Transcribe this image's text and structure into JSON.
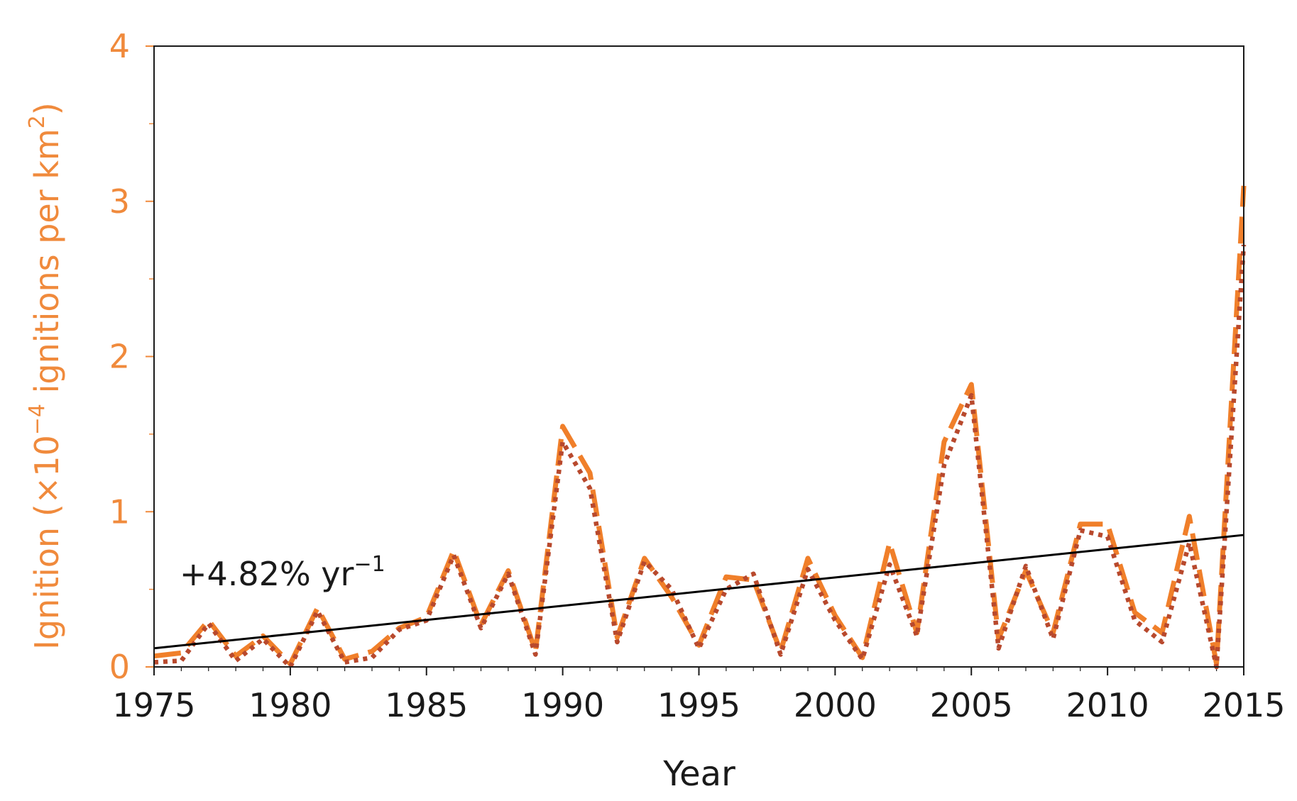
{
  "chart_data": {
    "type": "line",
    "title": "",
    "xlabel": "Year",
    "ylabel_parts": {
      "prefix": "Ignition (×10",
      "exp1": "−4",
      "middle": " ignitions per km",
      "exp2": "2",
      "suffix": ")"
    },
    "xlim": [
      1975,
      2015
    ],
    "ylim": [
      0,
      4
    ],
    "xticks": [
      1975,
      1980,
      1985,
      1990,
      1995,
      2000,
      2005,
      2010,
      2015
    ],
    "yticks": [
      0,
      1,
      2,
      3,
      4
    ],
    "x": [
      1975,
      1976,
      1977,
      1978,
      1979,
      1980,
      1981,
      1982,
      1983,
      1984,
      1985,
      1986,
      1987,
      1988,
      1989,
      1990,
      1991,
      1992,
      1993,
      1994,
      1995,
      1996,
      1997,
      1998,
      1999,
      2000,
      2001,
      2002,
      2003,
      2004,
      2005,
      2006,
      2007,
      2008,
      2009,
      2010,
      2011,
      2012,
      2013,
      2014,
      2015
    ],
    "series": [
      {
        "style": "dashed",
        "color": "#f07f2a",
        "values": [
          0.07,
          0.09,
          0.3,
          0.07,
          0.2,
          0.02,
          0.38,
          0.05,
          0.1,
          0.25,
          0.32,
          0.75,
          0.27,
          0.62,
          0.1,
          1.55,
          1.25,
          0.19,
          0.7,
          0.45,
          0.14,
          0.58,
          0.56,
          0.1,
          0.7,
          0.33,
          0.06,
          0.8,
          0.22,
          1.45,
          1.82,
          0.18,
          0.62,
          0.22,
          0.92,
          0.92,
          0.35,
          0.22,
          0.97,
          0.02,
          3.1
        ]
      },
      {
        "style": "dotted",
        "color": "#b8492d",
        "values": [
          0.03,
          0.04,
          0.28,
          0.04,
          0.18,
          0.0,
          0.36,
          0.03,
          0.06,
          0.24,
          0.3,
          0.72,
          0.25,
          0.6,
          0.08,
          1.45,
          1.15,
          0.16,
          0.68,
          0.5,
          0.12,
          0.5,
          0.6,
          0.08,
          0.63,
          0.3,
          0.05,
          0.66,
          0.2,
          1.3,
          1.75,
          0.12,
          0.65,
          0.18,
          0.88,
          0.84,
          0.3,
          0.16,
          0.8,
          0.0,
          2.72
        ]
      }
    ],
    "trend": {
      "x": [
        1975,
        2015
      ],
      "y": [
        0.12,
        0.85
      ],
      "color": "#000000",
      "label_base": "+4.82% yr",
      "label_exp": "−1"
    },
    "colors": {
      "accent": "#f08a3c",
      "axis": "#1a1a1a"
    },
    "grid": false,
    "legend": "none"
  }
}
